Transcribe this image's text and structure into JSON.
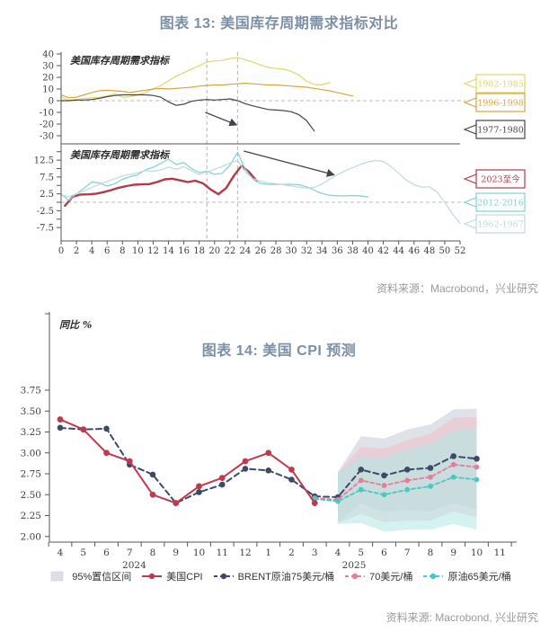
{
  "page": {
    "background": "#ffffff"
  },
  "chart_data": [
    {
      "id": "us-inventory-cycle-demand-comparison",
      "type": "line",
      "title": "图表 13: 美国库存周期需求指标对比",
      "source": "资料来源：Macrobond，兴业研究",
      "xlim": [
        0,
        52
      ],
      "xticks": [
        0,
        2,
        4,
        6,
        8,
        10,
        12,
        14,
        16,
        18,
        20,
        22,
        24,
        26,
        28,
        30,
        32,
        34,
        36,
        38,
        40,
        42,
        44,
        46,
        48,
        50,
        52
      ],
      "vlines": [
        19,
        23
      ],
      "panels": [
        {
          "label": "美国库存周期需求指标",
          "yticks": [
            40,
            30,
            20,
            10,
            0,
            -10,
            -20,
            -30
          ],
          "minor_ticks": [
            40,
            30,
            20,
            10,
            0,
            -10,
            -20,
            -30
          ],
          "zero_line": 0,
          "series": [
            {
              "name": "1982-1985",
              "color": "#dcd968",
              "width": 1.2,
              "x_start": 0,
              "values": [
                3,
                0.5,
                1,
                2,
                2.5,
                3,
                4,
                6,
                3,
                3.5,
                5,
                7,
                10,
                13,
                17,
                21,
                24,
                27,
                30,
                33,
                34,
                34.5,
                36,
                37,
                35,
                33,
                30.5,
                28.5,
                27.5,
                27,
                25,
                22,
                16.5,
                14,
                13.5,
                15.5
              ]
            },
            {
              "name": "1996-1998",
              "color": "#d9a440",
              "width": 1.2,
              "x_start": 0,
              "values": [
                5,
                2.5,
                3,
                5,
                7,
                8.5,
                9,
                8.5,
                8,
                7,
                8,
                9,
                10,
                10.5,
                10,
                10.5,
                11,
                11.5,
                12.5,
                13,
                13.5,
                13.5,
                14,
                14.5,
                15,
                14.5,
                14,
                13.5,
                13.5,
                13,
                12.5,
                12,
                11.5,
                10.5,
                9.5,
                8.5,
                7,
                5.5,
                4
              ]
            },
            {
              "name": "1977-1980",
              "color": "#43434b",
              "width": 1.2,
              "x_start": 0,
              "values": [
                0,
                0,
                0.5,
                0.5,
                1,
                2,
                3.5,
                4.5,
                5,
                5,
                5,
                5,
                4.5,
                3,
                -1,
                -4,
                -3,
                -0.5,
                0.5,
                1,
                0.5,
                1,
                1.5,
                0,
                -2.5,
                -4.5,
                -6,
                -7.5,
                -8,
                -8.5,
                -9.5,
                -12,
                -17,
                -26
              ]
            }
          ],
          "arrow": {
            "from": [
              18.8,
              -10
            ],
            "to": [
              22.8,
              -20.5
            ]
          }
        },
        {
          "label": "美国库存周期需求指标",
          "yticks": [
            12.5,
            7.5,
            2.5,
            -2.5,
            -7.5
          ],
          "minor_ticks": [
            15,
            12.5,
            10,
            7.5,
            5,
            2.5,
            0,
            -2.5,
            -5,
            -7.5
          ],
          "zero_line": 0,
          "series": [
            {
              "name": "2023至今",
              "color": "#b43a4a",
              "width": 2.4,
              "x_start": 0.5,
              "values": [
                -1,
                1.6,
                2.3,
                2.35,
                2.5,
                3,
                3.6,
                4.3,
                4.8,
                5.2,
                5.3,
                5.4,
                6,
                6.8,
                7,
                6.5,
                6,
                6.4,
                5.6,
                3.8,
                2.4,
                4.2,
                7.8,
                10.8,
                9,
                6.3
              ]
            },
            {
              "name": "2012-2016",
              "color": "#7fd1d5",
              "width": 1.2,
              "x_start": 0,
              "values": [
                2.4,
                0.6,
                2.5,
                4.2,
                6,
                5.7,
                4.8,
                5.5,
                6.8,
                7.6,
                8.2,
                9.6,
                10.4,
                11.5,
                12.8,
                11.2,
                11.8,
                10,
                8.8,
                9.2,
                8.3,
                8.6,
                11,
                14.8,
                9.8,
                6.8,
                5.6,
                5.3,
                5.3,
                5.3,
                5.3,
                5.2,
                4.6,
                3.6,
                2.6,
                2.1,
                1.9,
                1.9,
                2,
                1.9,
                1.6
              ]
            },
            {
              "name": "1962-1967",
              "color": "#bedade",
              "width": 1.2,
              "x_start": 0,
              "values": [
                2.2,
                1.6,
                2.6,
                3.4,
                4.4,
                5.3,
                6.2,
                7,
                7.8,
                8.3,
                8.8,
                9.4,
                9.2,
                9.6,
                10.4,
                9.8,
                10.6,
                9.4,
                8.2,
                9,
                9.8,
                10.6,
                11.6,
                12.4,
                9,
                7,
                6.3,
                5.8,
                5.5,
                5.2,
                4.8,
                4.5,
                4.2,
                4.4,
                5.4,
                6.8,
                8.2,
                9.3,
                10.3,
                11.2,
                12,
                12.4,
                12.1,
                10.6,
                8.6,
                6.6,
                5.2,
                4.5,
                4.6,
                3,
                0,
                -3.5,
                -6.2
              ]
            }
          ],
          "arrow": {
            "from": [
              23.8,
              15.2
            ],
            "to": [
              35.5,
              8.2
            ]
          }
        }
      ]
    },
    {
      "id": "us-cpi-forecast",
      "type": "line",
      "title": "图表 14: 美国 CPI 预测",
      "source": "资料来源: Macrobond, 兴业研究",
      "ylabel": "同比 %",
      "ylim": [
        2.0,
        3.75
      ],
      "yticks": [
        "3.75",
        "3.50",
        "3.25",
        "3.00",
        "2.75",
        "2.50",
        "2.25",
        "2.00"
      ],
      "x_labels": [
        "4",
        "5",
        "6",
        "7",
        "8",
        "9",
        "10",
        "11",
        "12",
        "1",
        "2",
        "3",
        "4",
        "5",
        "6",
        "7",
        "8",
        "9",
        "10",
        "11"
      ],
      "year_labels": [
        {
          "text": "2024",
          "x_index": 3.2
        },
        {
          "text": "2025",
          "x_index": 12.7
        }
      ],
      "bands": [
        {
          "name": "95%置信区间 BRENT原油75美元/桶",
          "color": "#b7bfce",
          "opacity": 0.45,
          "x_start": 12,
          "top": [
            2.77,
            3.2,
            3.17,
            3.28,
            3.34,
            3.52,
            3.53
          ],
          "bottom": [
            2.17,
            2.4,
            2.29,
            2.32,
            2.3,
            2.4,
            2.33
          ]
        },
        {
          "name": "95%置信区间 70美元/桶",
          "color": "#f3b9c6",
          "opacity": 0.5,
          "x_start": 12,
          "top": [
            2.76,
            3.07,
            3.05,
            3.15,
            3.23,
            3.42,
            3.43
          ],
          "bottom": [
            2.16,
            2.27,
            2.17,
            2.19,
            2.19,
            2.3,
            2.23
          ]
        },
        {
          "name": "95%置信区间 原油65美元/桶",
          "color": "#aee8e4",
          "opacity": 0.55,
          "x_start": 12,
          "top": [
            2.75,
            2.96,
            2.94,
            3.04,
            3.12,
            3.27,
            3.28
          ],
          "bottom": [
            2.15,
            2.16,
            2.06,
            2.08,
            2.08,
            2.15,
            2.08
          ]
        }
      ],
      "series": [
        {
          "name": "BRENT原油75美元/桶",
          "color": "#3c4a66",
          "dash": "6 4",
          "width": 2,
          "marker_r": 3.3,
          "x_start": 0,
          "values": [
            3.3,
            3.28,
            3.29,
            2.86,
            2.74,
            2.4,
            2.53,
            2.62,
            2.81,
            2.79,
            2.68,
            2.48,
            2.47,
            2.8,
            2.73,
            2.8,
            2.82,
            2.96,
            2.93
          ]
        },
        {
          "name": "70美元/桶",
          "color": "#e87d96",
          "dash": "4 3",
          "width": 1.8,
          "marker_r": 2.9,
          "x_start": 11,
          "values": [
            2.46,
            2.44,
            2.67,
            2.61,
            2.67,
            2.71,
            2.86,
            2.83
          ]
        },
        {
          "name": "原油65美元/桶",
          "color": "#4ac9c3",
          "dash": "4 3",
          "width": 1.8,
          "marker_r": 2.9,
          "x_start": 11,
          "values": [
            2.45,
            2.42,
            2.56,
            2.5,
            2.56,
            2.6,
            2.71,
            2.68
          ]
        },
        {
          "name": "美国CPI",
          "color": "#bf3a4e",
          "dash": "",
          "width": 2,
          "marker_r": 3.4,
          "x_start": 0,
          "values": [
            3.4,
            3.28,
            3.0,
            2.9,
            2.5,
            2.4,
            2.6,
            2.7,
            2.9,
            3.0,
            2.8,
            2.4
          ]
        }
      ],
      "legend": [
        {
          "label": "95%置信区间",
          "type": "patch",
          "color": "#dcdfe8"
        },
        {
          "label": "美国CPI",
          "type": "line",
          "color": "#bf3a4e",
          "dash": ""
        },
        {
          "label": "BRENT原油75美元/桶",
          "type": "line",
          "color": "#3c4a66",
          "dash": "4 3"
        },
        {
          "label": "70美元/桶",
          "type": "line",
          "color": "#e87d96",
          "dash": "4 3"
        },
        {
          "label": "原油65美元/桶",
          "type": "line",
          "color": "#4ac9c3",
          "dash": "4 3"
        }
      ]
    }
  ]
}
